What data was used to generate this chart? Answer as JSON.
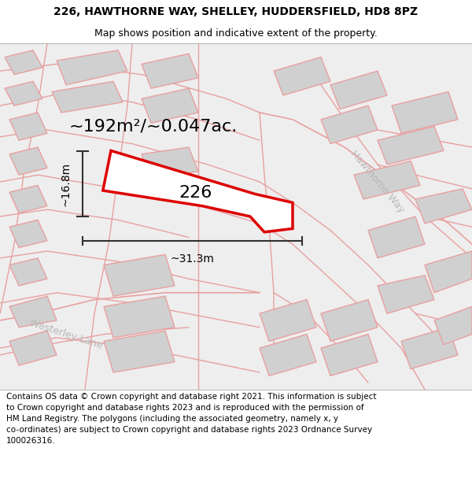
{
  "title_line1": "226, HAWTHORNE WAY, SHELLEY, HUDDERSFIELD, HD8 8PZ",
  "title_line2": "Map shows position and indicative extent of the property.",
  "area_label": "~192m²/~0.047ac.",
  "property_number": "226",
  "dim_width": "~31.3m",
  "dim_height": "~16.8m",
  "road_label_1": "Hawthorne Way",
  "road_label_2": "Westerley Lane",
  "footer_text": "Contains OS data © Crown copyright and database right 2021. This information is subject\nto Crown copyright and database rights 2023 and is reproduced with the permission of\nHM Land Registry. The polygons (including the associated geometry, namely x, y\nco-ordinates) are subject to Crown copyright and database rights 2023 Ordnance Survey\n100026316.",
  "bg_color": "#ffffff",
  "map_bg": "#ececec",
  "plot_color": "#dd0000",
  "plot_fill": "#ffffff",
  "road_color": "#e8a0a0",
  "building_fill": "#d0d0d0",
  "building_outline": "#e8a0a0",
  "road_label_color": "#c8c8c8",
  "dim_color": "#303030",
  "title_fontsize": 10,
  "subtitle_fontsize": 9,
  "area_fontsize": 16,
  "prop_num_fontsize": 16,
  "dim_fontsize": 10,
  "road_label_fontsize": 9,
  "footer_fontsize": 7.5
}
